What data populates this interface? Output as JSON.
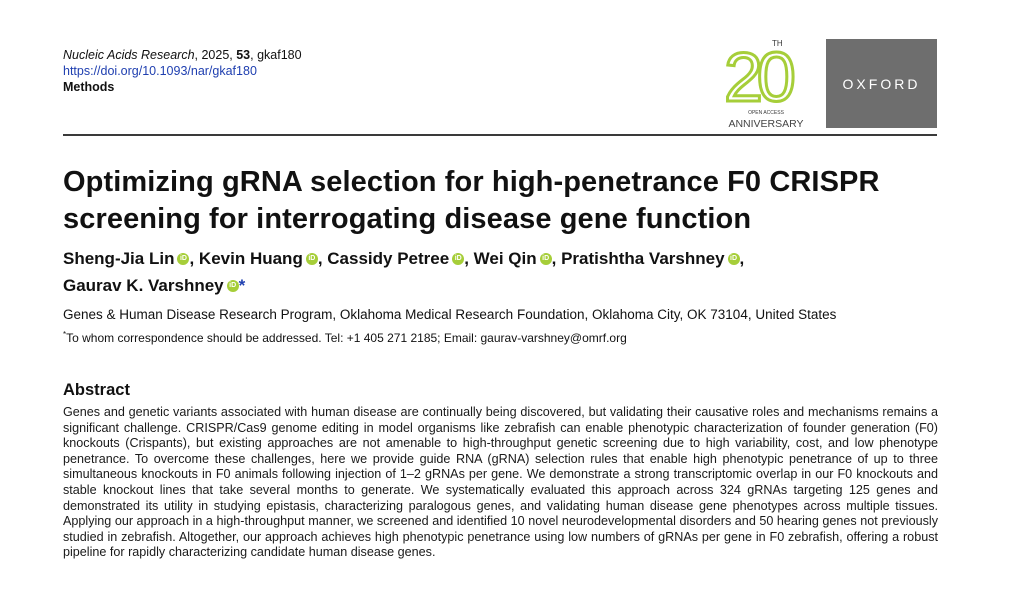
{
  "journal": {
    "name": "Nucleic Acids Research",
    "year": ", 2025, ",
    "volume": "53",
    "article_id": ", gkaf180",
    "doi": "https://doi.org/10.1093/nar/gkaf180",
    "section": "Methods"
  },
  "logos": {
    "anniversary_number": "20",
    "anniversary_suffix": "TH",
    "anniversary_line1": "OPEN ACCESS",
    "anniversary_line2": "ANNIVERSARY",
    "publisher": "OXFORD",
    "colors": {
      "green": "#a6ce39",
      "teal": "#3a8a8c",
      "oxford_bg": "#6e6e6e"
    }
  },
  "paper": {
    "title": "Optimizing gRNA selection for high-penetrance F0 CRISPR screening for interrogating disease gene function",
    "authors": [
      {
        "name": "Sheng-Jia Lin",
        "sep": ", "
      },
      {
        "name": "Kevin Huang",
        "sep": ", "
      },
      {
        "name": "Cassidy Petree",
        "sep": ", "
      },
      {
        "name": "Wei Qin",
        "sep": ", "
      },
      {
        "name": "Pratishtha Varshney",
        "sep": ", "
      },
      {
        "name": "Gaurav K. Varshney",
        "sep": ""
      }
    ],
    "orcid_label": "iD",
    "corresponding_mark": "*",
    "affiliation": "Genes & Human Disease Research Program, Oklahoma Medical Research Foundation, Oklahoma City, OK 73104, United States",
    "correspondence_mark": "*",
    "correspondence": "To whom correspondence should be addressed. Tel: +1 405 271 2185; Email: gaurav-varshney@omrf.org",
    "abstract_heading": "Abstract",
    "abstract": "Genes and genetic variants associated with human disease are continually being discovered, but validating their causative roles and mechanisms remains a significant challenge. CRISPR/Cas9 genome editing in model organisms like zebrafish can enable phenotypic characterization of founder generation (F0) knockouts (Crispants), but existing approaches are not amenable to high-throughput genetic screening due to high variability, cost, and low phenotype penetrance. To overcome these challenges, here we provide guide RNA (gRNA) selection rules that enable high phenotypic penetrance of up to three simultaneous knockouts in F0 animals following injection of 1–2 gRNAs per gene. We demonstrate a strong transcriptomic overlap in our F0 knockouts and stable knockout lines that take several months to generate. We systematically evaluated this approach across 324 gRNAs targeting 125 genes and demonstrated its utility in studying epistasis, characterizing paralogous genes, and validating human disease gene phenotypes across multiple tissues. Applying our approach in a high-throughput manner, we screened and identified 10 novel neurodevelopmental disorders and 50 hearing genes not previously studied in zebrafish. Altogether, our approach achieves high phenotypic penetrance using low numbers of gRNAs per gene in F0 zebrafish, offering a robust pipeline for rapidly characterizing candidate human disease genes."
  }
}
